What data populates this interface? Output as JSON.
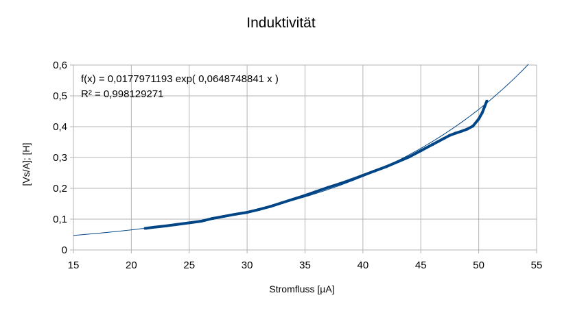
{
  "chart_data": {
    "type": "scatter",
    "title": "Induktivität",
    "xlabel": "Stromfluss [µA]",
    "ylabel": "[Vs/A]; [H]",
    "xlim": [
      15,
      55
    ],
    "ylim": [
      0,
      0.6
    ],
    "x_ticks": [
      "15",
      "20",
      "25",
      "30",
      "35",
      "40",
      "45",
      "50",
      "55"
    ],
    "y_ticks": [
      "0",
      "0,1",
      "0,2",
      "0,3",
      "0,4",
      "0,5",
      "0,6"
    ],
    "grid": true,
    "legend": "none",
    "series_color": "#004586",
    "trendline_color": "#004586",
    "trendline": {
      "equation": "f(x) = 0,0177971193 exp( 0,0648748841 x )",
      "r_squared": "R² = 0,998129271",
      "a": 0.0177971193,
      "b": 0.0648748841,
      "x_range": [
        15,
        54.3
      ]
    },
    "series": [
      {
        "x": [
          21.2,
          22.0,
          23.0,
          24.0,
          25.0,
          26.0,
          27.0,
          28.0,
          29.0,
          30.0,
          31.0,
          32.0,
          33.0,
          34.0,
          35.0,
          36.0,
          37.0,
          38.0,
          39.0,
          40.0,
          41.0,
          42.0,
          43.0,
          44.0,
          45.0,
          46.0,
          46.5,
          47.0,
          47.5,
          48.0,
          48.5,
          49.0,
          49.5,
          50.0,
          50.3,
          50.7
        ],
        "y": [
          0.07,
          0.074,
          0.078,
          0.083,
          0.088,
          0.093,
          0.102,
          0.109,
          0.116,
          0.122,
          0.131,
          0.141,
          0.153,
          0.165,
          0.177,
          0.19,
          0.203,
          0.215,
          0.228,
          0.242,
          0.256,
          0.27,
          0.286,
          0.302,
          0.322,
          0.342,
          0.352,
          0.362,
          0.372,
          0.379,
          0.385,
          0.392,
          0.402,
          0.425,
          0.445,
          0.483
        ]
      }
    ]
  }
}
